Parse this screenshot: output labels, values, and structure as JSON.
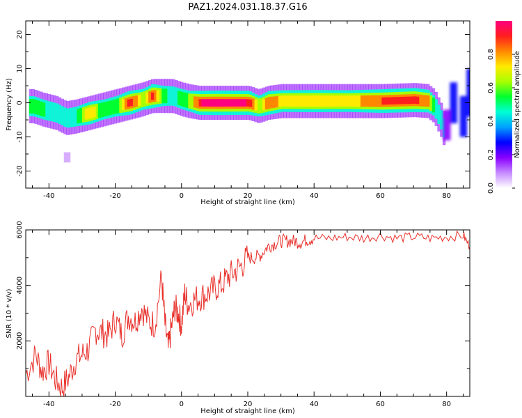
{
  "figure": {
    "title": "PAZ1.2024.031.18.37.G16"
  },
  "colors": {
    "snr_line": "#e8302a",
    "colormap": [
      "#ffffff",
      "#c68cff",
      "#8a00ff",
      "#0000ff",
      "#00a0ff",
      "#00ffd5",
      "#00ff30",
      "#a8ff00",
      "#ffea00",
      "#ff8800",
      "#ff1e1e",
      "#ff0080"
    ]
  },
  "chart_data": [
    {
      "type": "heatmap",
      "title": "",
      "xlabel": "Height of straight line (km)",
      "ylabel": "Frequency (Hz)",
      "xlim": [
        -47,
        87
      ],
      "ylim": [
        -25,
        24
      ],
      "xticks": [
        -40,
        -20,
        0,
        20,
        40,
        60,
        80
      ],
      "yticks": [
        -20,
        -10,
        0,
        10,
        20
      ],
      "colorbar": {
        "label": "Normalized spectral amplitude",
        "range": [
          0,
          1
        ],
        "ticks": [
          "0.0",
          "0.2",
          "0.4",
          "0.6",
          "0.8"
        ],
        "tick_values": [
          0.0,
          0.2,
          0.4,
          0.6,
          0.8
        ]
      },
      "ridge": {
        "description_points_x": [
          -45,
          -42,
          -38,
          -35,
          -32,
          -28,
          -24,
          -20,
          -16,
          -12,
          -9,
          -6,
          -3,
          0,
          2,
          5,
          10,
          20,
          23,
          26,
          30,
          40,
          50,
          60,
          70,
          74,
          76,
          78,
          80
        ],
        "frequency_hz": [
          -1,
          -2,
          -3,
          -4.5,
          -4,
          -3,
          -2,
          -1,
          0,
          1,
          2,
          2,
          2,
          1,
          0.5,
          0,
          0,
          0,
          -1,
          0,
          0.5,
          0.5,
          0.5,
          0.5,
          0.8,
          0.5,
          -1,
          -5,
          -11
        ],
        "amplitude": [
          0.55,
          0.5,
          0.45,
          0.45,
          0.5,
          0.8,
          0.5,
          0.55,
          0.95,
          0.6,
          0.95,
          0.55,
          0.45,
          0.55,
          0.6,
          0.95,
          1.0,
          0.95,
          0.6,
          0.9,
          0.7,
          0.75,
          0.7,
          0.9,
          0.95,
          0.8,
          0.5,
          0.45,
          0.4
        ]
      }
    },
    {
      "type": "line",
      "title": "",
      "xlabel": "Height of straight line (km)",
      "ylabel": "SNR (10 * v/v)",
      "xlim": [
        -47,
        87
      ],
      "ylim": [
        0,
        6000
      ],
      "xticks": [
        -40,
        -20,
        0,
        20,
        40,
        60,
        80
      ],
      "yticks": [
        2000,
        4000,
        6000
      ],
      "series": [
        {
          "x": [
            -47,
            -44,
            -42,
            -40,
            -38,
            -36,
            -34,
            -32,
            -30,
            -28,
            -26,
            -24,
            -22,
            -20,
            -18,
            -16,
            -14,
            -12,
            -10,
            -8,
            -6,
            -5,
            -4,
            -3,
            -2,
            -1,
            0,
            1,
            2,
            4,
            6,
            8,
            10,
            12,
            14,
            16,
            18,
            20,
            22,
            24,
            26,
            28,
            30,
            32,
            34,
            36,
            38,
            40,
            45,
            50,
            55,
            60,
            65,
            70,
            75,
            80,
            85,
            87
          ],
          "values": [
            800,
            1500,
            900,
            1200,
            600,
            300,
            700,
            1300,
            1500,
            1700,
            2400,
            2300,
            2200,
            2800,
            2200,
            2900,
            2700,
            3200,
            2700,
            2600,
            4300,
            2600,
            1700,
            2500,
            3200,
            3000,
            2600,
            3700,
            3300,
            3500,
            3600,
            3700,
            3900,
            4000,
            4300,
            4500,
            4700,
            5000,
            5000,
            5100,
            5400,
            5500,
            5600,
            5600,
            5600,
            5550,
            5650,
            5700,
            5700,
            5750,
            5700,
            5800,
            5700,
            5750,
            5700,
            5750,
            5800,
            5400
          ]
        }
      ]
    }
  ]
}
